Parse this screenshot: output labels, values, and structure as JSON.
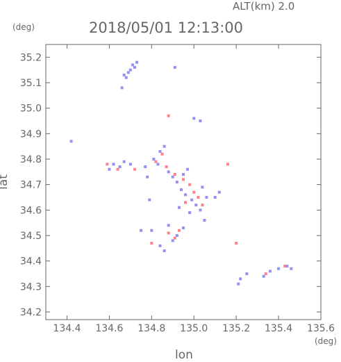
{
  "header": {
    "altitude": "ALT(km) 2.0",
    "timestamp": "2018/05/01 12:13:00"
  },
  "chart_data": {
    "type": "scatter",
    "title": "2018/05/01 12:13:00",
    "subtitle": "ALT(km) 2.0",
    "xlabel": "lon",
    "ylabel": "lat",
    "x_unit": "(deg)",
    "y_unit": "(deg)",
    "xlim": [
      134.3,
      135.6
    ],
    "ylim": [
      34.17,
      35.25
    ],
    "x_ticks": [
      134.4,
      134.6,
      134.8,
      135.0,
      135.2,
      135.4,
      135.6
    ],
    "x_tick_labels": [
      "134.4",
      "134.6",
      "134.8",
      "135.0",
      "135.2",
      "135.4",
      "135.6"
    ],
    "y_ticks": [
      34.2,
      34.3,
      34.4,
      34.5,
      34.6,
      34.7,
      34.8,
      34.9,
      35.0,
      35.1,
      35.2
    ],
    "y_tick_labels": [
      "34.2",
      "34.3",
      "34.4",
      "34.5",
      "34.6",
      "34.7",
      "34.8",
      "34.9",
      "35.0",
      "35.1",
      "35.2"
    ],
    "grid": false,
    "colors": {
      "positive": "#ff6b7a",
      "negative": "#7f7ff2",
      "axis": "#666666"
    },
    "series": [
      {
        "color": "#7f7ff2",
        "points": [
          [
            134.67,
            35.13
          ],
          [
            134.69,
            35.14
          ],
          [
            134.7,
            35.15
          ],
          [
            134.72,
            35.16
          ],
          [
            134.68,
            35.12
          ],
          [
            134.71,
            35.17
          ],
          [
            134.73,
            35.18
          ],
          [
            134.66,
            35.08
          ],
          [
            134.91,
            35.16
          ],
          [
            134.84,
            34.83
          ],
          [
            134.86,
            34.85
          ],
          [
            134.81,
            34.8
          ],
          [
            134.83,
            34.78
          ],
          [
            134.88,
            34.75
          ],
          [
            134.9,
            34.73
          ],
          [
            134.92,
            34.71
          ],
          [
            134.95,
            34.74
          ],
          [
            134.97,
            34.76
          ],
          [
            134.94,
            34.68
          ],
          [
            134.96,
            34.66
          ],
          [
            134.99,
            34.64
          ],
          [
            135.01,
            34.62
          ],
          [
            135.03,
            34.6
          ],
          [
            134.98,
            34.59
          ],
          [
            134.93,
            34.61
          ],
          [
            135.04,
            34.69
          ],
          [
            135.06,
            34.65
          ],
          [
            134.62,
            34.78
          ],
          [
            134.65,
            34.77
          ],
          [
            134.67,
            34.79
          ],
          [
            134.6,
            34.76
          ],
          [
            134.7,
            34.78
          ],
          [
            134.77,
            34.77
          ],
          [
            134.78,
            34.73
          ],
          [
            134.92,
            34.5
          ],
          [
            134.95,
            34.53
          ],
          [
            134.9,
            34.48
          ],
          [
            134.88,
            34.54
          ],
          [
            134.84,
            34.46
          ],
          [
            134.86,
            34.44
          ],
          [
            134.8,
            34.52
          ],
          [
            135.0,
            34.96
          ],
          [
            135.03,
            34.95
          ],
          [
            134.42,
            34.87
          ],
          [
            135.25,
            34.35
          ],
          [
            135.22,
            34.33
          ],
          [
            135.33,
            34.34
          ],
          [
            135.36,
            34.36
          ],
          [
            135.4,
            34.37
          ],
          [
            135.44,
            34.38
          ],
          [
            135.46,
            34.37
          ],
          [
            135.21,
            34.31
          ],
          [
            135.1,
            34.65
          ],
          [
            135.12,
            34.67
          ],
          [
            135.05,
            34.56
          ],
          [
            134.79,
            34.64
          ],
          [
            134.75,
            34.52
          ]
        ]
      },
      {
        "color": "#ff6b7a",
        "points": [
          [
            134.88,
            34.97
          ],
          [
            134.85,
            34.82
          ],
          [
            134.82,
            34.79
          ],
          [
            134.87,
            34.77
          ],
          [
            134.91,
            34.74
          ],
          [
            134.95,
            34.72
          ],
          [
            134.98,
            34.7
          ],
          [
            135.0,
            34.67
          ],
          [
            135.02,
            34.65
          ],
          [
            135.04,
            34.62
          ],
          [
            134.96,
            34.63
          ],
          [
            134.64,
            34.76
          ],
          [
            134.72,
            34.76
          ],
          [
            134.93,
            34.52
          ],
          [
            134.91,
            34.49
          ],
          [
            134.88,
            34.51
          ],
          [
            135.2,
            34.47
          ],
          [
            135.16,
            34.78
          ],
          [
            135.43,
            34.38
          ],
          [
            135.34,
            34.35
          ],
          [
            134.59,
            34.78
          ],
          [
            134.8,
            34.47
          ]
        ]
      }
    ]
  }
}
